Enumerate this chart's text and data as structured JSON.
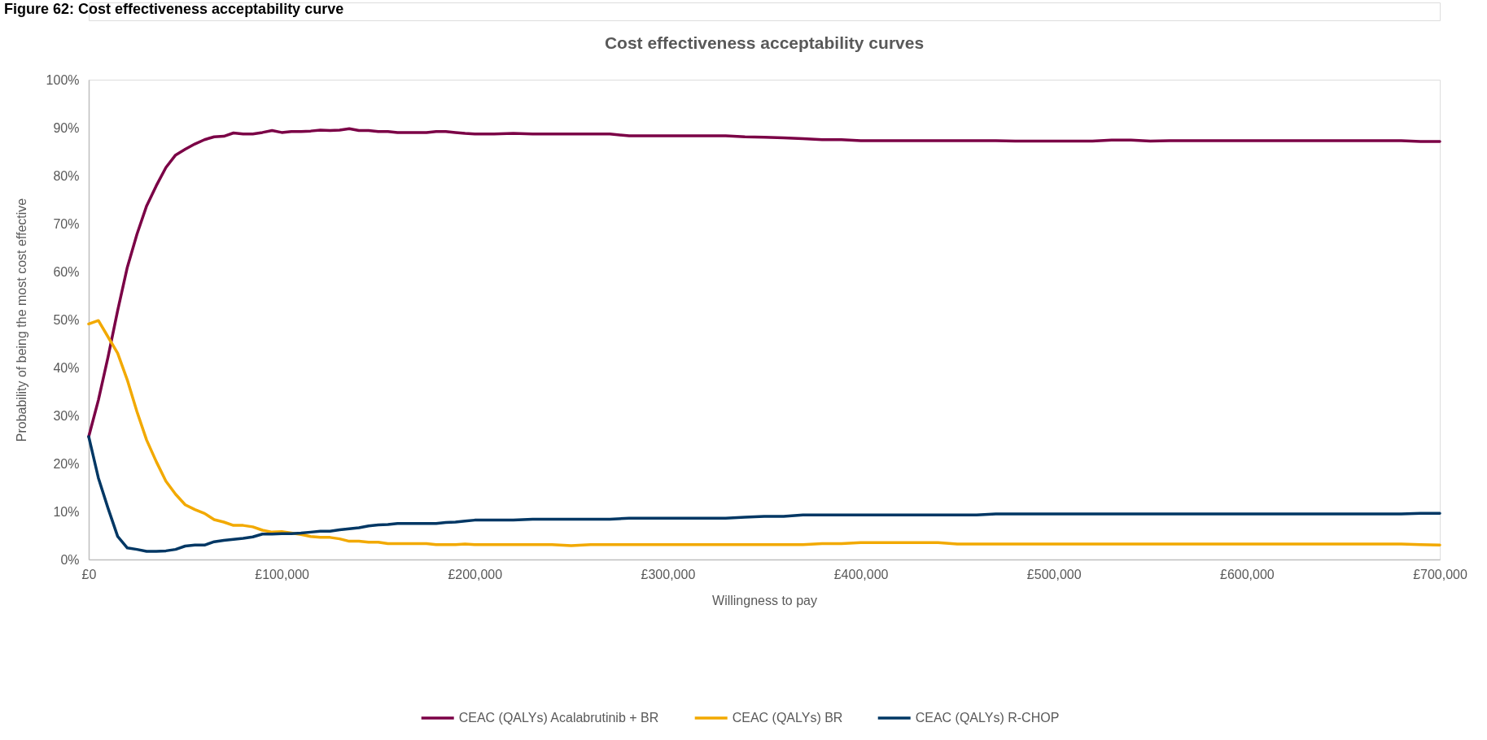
{
  "chart_data": {
    "type": "line",
    "title": "Cost effectiveness acceptability curves",
    "xlabel": "Willingness to pay",
    "ylabel": "Probability of being the most cost effective",
    "annotations": [
      "Figure 62: Cost effectiveness acceptability curve"
    ],
    "x": [
      0,
      5000,
      10000,
      15000,
      20000,
      25000,
      30000,
      35000,
      40000,
      45000,
      50000,
      55000,
      60000,
      65000,
      70000,
      75000,
      80000,
      85000,
      90000,
      95000,
      100000,
      105000,
      110000,
      115000,
      120000,
      125000,
      130000,
      135000,
      140000,
      145000,
      150000,
      155000,
      160000,
      165000,
      170000,
      175000,
      180000,
      185000,
      190000,
      195000,
      200000,
      210000,
      220000,
      230000,
      240000,
      250000,
      260000,
      270000,
      280000,
      290000,
      300000,
      310000,
      320000,
      330000,
      340000,
      350000,
      360000,
      370000,
      380000,
      390000,
      400000,
      410000,
      420000,
      430000,
      440000,
      450000,
      460000,
      470000,
      480000,
      490000,
      500000,
      510000,
      520000,
      530000,
      540000,
      550000,
      560000,
      570000,
      580000,
      590000,
      600000,
      610000,
      620000,
      630000,
      640000,
      650000,
      660000,
      670000,
      680000,
      690000,
      700000
    ],
    "series": [
      {
        "name": "CEAC (QALYs) Acalabrutinib + BR",
        "color": "#7b0046",
        "values": [
          25.6,
          33.2,
          42.2,
          51.9,
          60.9,
          67.8,
          73.7,
          77.9,
          81.7,
          84.3,
          85.5,
          86.6,
          87.5,
          88.1,
          88.2,
          88.9,
          88.7,
          88.7,
          89.0,
          89.4,
          89.0,
          89.2,
          89.2,
          89.3,
          89.5,
          89.4,
          89.5,
          89.8,
          89.4,
          89.4,
          89.2,
          89.2,
          89.0,
          89.0,
          89.0,
          89.0,
          89.2,
          89.2,
          89.0,
          88.8,
          88.7,
          88.7,
          88.8,
          88.7,
          88.7,
          88.7,
          88.7,
          88.7,
          88.3,
          88.3,
          88.3,
          88.3,
          88.3,
          88.3,
          88.1,
          88.0,
          87.9,
          87.7,
          87.5,
          87.5,
          87.3,
          87.3,
          87.3,
          87.3,
          87.3,
          87.3,
          87.3,
          87.3,
          87.2,
          87.2,
          87.2,
          87.2,
          87.2,
          87.4,
          87.4,
          87.2,
          87.3,
          87.3,
          87.3,
          87.3,
          87.3,
          87.3,
          87.3,
          87.3,
          87.3,
          87.3,
          87.3,
          87.3,
          87.3,
          87.1,
          87.1
        ]
      },
      {
        "name": "CEAC (QALYs) BR",
        "color": "#f2a900",
        "values": [
          49.1,
          49.8,
          46.4,
          43.0,
          37.4,
          30.8,
          24.9,
          20.4,
          16.3,
          13.6,
          11.4,
          10.4,
          9.6,
          8.3,
          7.8,
          7.1,
          7.1,
          6.8,
          6.1,
          5.7,
          5.8,
          5.5,
          5.2,
          4.8,
          4.6,
          4.6,
          4.3,
          3.8,
          3.8,
          3.6,
          3.6,
          3.3,
          3.3,
          3.3,
          3.3,
          3.3,
          3.1,
          3.1,
          3.1,
          3.2,
          3.1,
          3.1,
          3.1,
          3.1,
          3.1,
          2.9,
          3.1,
          3.1,
          3.1,
          3.1,
          3.1,
          3.1,
          3.1,
          3.1,
          3.1,
          3.1,
          3.1,
          3.1,
          3.3,
          3.3,
          3.5,
          3.5,
          3.5,
          3.5,
          3.5,
          3.2,
          3.2,
          3.2,
          3.2,
          3.2,
          3.2,
          3.2,
          3.2,
          3.2,
          3.2,
          3.2,
          3.2,
          3.2,
          3.2,
          3.2,
          3.2,
          3.2,
          3.2,
          3.2,
          3.2,
          3.2,
          3.2,
          3.2,
          3.2,
          3.1,
          3.0
        ]
      },
      {
        "name": "CEAC (QALYs) R-CHOP",
        "color": "#003764",
        "values": [
          25.6,
          17.0,
          10.7,
          4.8,
          2.4,
          2.1,
          1.7,
          1.7,
          1.8,
          2.1,
          2.8,
          3.0,
          3.0,
          3.7,
          4.0,
          4.2,
          4.4,
          4.7,
          5.3,
          5.3,
          5.4,
          5.4,
          5.5,
          5.7,
          5.9,
          5.9,
          6.2,
          6.4,
          6.6,
          7.0,
          7.2,
          7.3,
          7.5,
          7.5,
          7.5,
          7.5,
          7.5,
          7.7,
          7.8,
          8.0,
          8.2,
          8.2,
          8.2,
          8.4,
          8.4,
          8.4,
          8.4,
          8.4,
          8.6,
          8.6,
          8.6,
          8.6,
          8.6,
          8.6,
          8.8,
          9.0,
          9.0,
          9.3,
          9.3,
          9.3,
          9.3,
          9.3,
          9.3,
          9.3,
          9.3,
          9.3,
          9.3,
          9.5,
          9.5,
          9.5,
          9.5,
          9.5,
          9.5,
          9.5,
          9.5,
          9.5,
          9.5,
          9.5,
          9.5,
          9.5,
          9.5,
          9.5,
          9.5,
          9.5,
          9.5,
          9.5,
          9.5,
          9.5,
          9.5,
          9.6,
          9.6
        ]
      }
    ],
    "xlim": [
      0,
      700000
    ],
    "xticks": [
      {
        "value": 0,
        "label": "£0"
      },
      {
        "value": 100000,
        "label": "£100,000"
      },
      {
        "value": 200000,
        "label": "£200,000"
      },
      {
        "value": 300000,
        "label": "£300,000"
      },
      {
        "value": 400000,
        "label": "£400,000"
      },
      {
        "value": 500000,
        "label": "£500,000"
      },
      {
        "value": 600000,
        "label": "£600,000"
      },
      {
        "value": 700000,
        "label": "£700,000"
      }
    ],
    "ylim": [
      0,
      100
    ],
    "yticks": [
      {
        "value": 0,
        "label": "0%"
      },
      {
        "value": 10,
        "label": "10%"
      },
      {
        "value": 20,
        "label": "20%"
      },
      {
        "value": 30,
        "label": "30%"
      },
      {
        "value": 40,
        "label": "40%"
      },
      {
        "value": 50,
        "label": "50%"
      },
      {
        "value": 60,
        "label": "60%"
      },
      {
        "value": 70,
        "label": "70%"
      },
      {
        "value": 80,
        "label": "80%"
      },
      {
        "value": 90,
        "label": "90%"
      },
      {
        "value": 100,
        "label": "100%"
      }
    ],
    "grid": false,
    "legend": "bottom",
    "marker": "none",
    "line_style": "solid"
  }
}
